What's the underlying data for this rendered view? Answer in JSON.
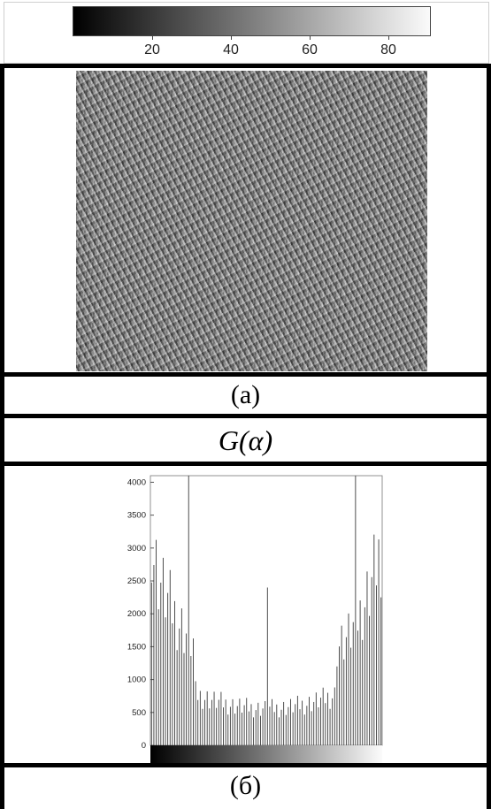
{
  "colorbar": {
    "tick_labels": [
      "20",
      "40",
      "60",
      "80"
    ],
    "tick_values": [
      20,
      40,
      60,
      80
    ],
    "range": [
      0,
      90
    ]
  },
  "captions": {
    "a": "(a)",
    "g": "G(α)",
    "b": "(б)"
  },
  "chart_data": {
    "type": "bar",
    "title": "",
    "xlabel": "",
    "ylabel": "",
    "ylim": [
      0,
      4100
    ],
    "y_ticks": [
      0,
      500,
      1000,
      1500,
      2000,
      2500,
      3000,
      3500,
      4000
    ],
    "y_tick_labels": [
      "0",
      "500",
      "1000",
      "1500",
      "2000",
      "2500",
      "3000",
      "3500",
      "4000"
    ],
    "x_colorbar": true,
    "bin_count": 100,
    "envelope": {
      "left_edge": 3300,
      "left_shoulder": 1500,
      "drop_bin": 19,
      "middle_floor": 560,
      "right_rise_bin": 80,
      "right_edge": 3000
    },
    "spikes": [
      {
        "bin": 16,
        "value": 4100
      },
      {
        "bin": 50,
        "value": 2400
      },
      {
        "bin": 88,
        "value": 4100
      }
    ],
    "grid": false
  }
}
